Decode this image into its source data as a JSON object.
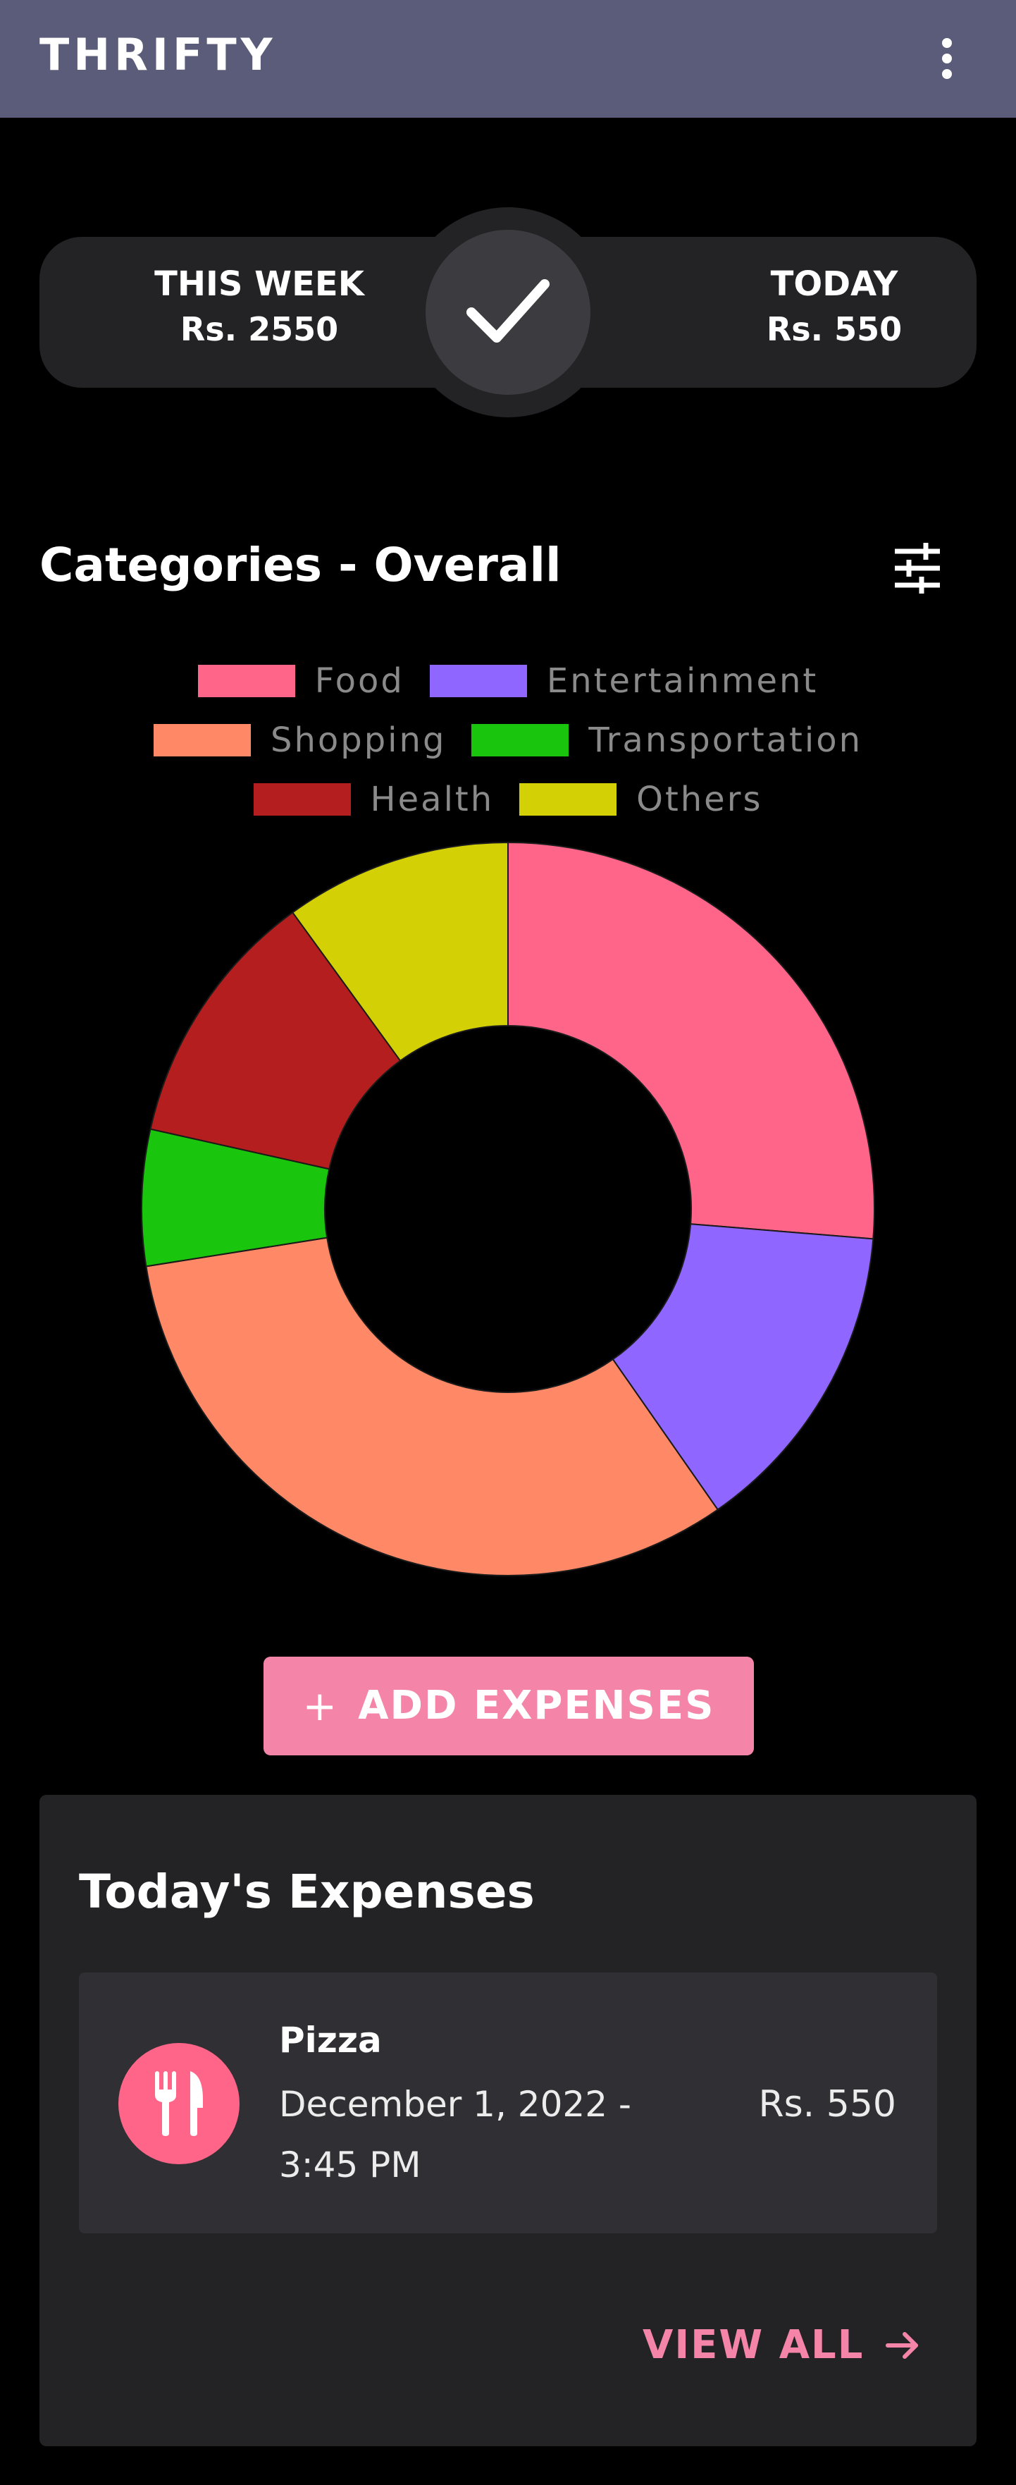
{
  "app": {
    "title": "THRIFTY"
  },
  "summary": {
    "week_label": "THIS WEEK",
    "week_value": "Rs. 2550",
    "today_label": "TODAY",
    "today_value": "Rs. 550"
  },
  "categories_section": {
    "title": "Categories - Overall"
  },
  "legend": [
    {
      "label": "Food",
      "color": "#ff6489"
    },
    {
      "label": "Entertainment",
      "color": "#8f66ff"
    },
    {
      "label": "Shopping",
      "color": "#ff8866"
    },
    {
      "label": "Transportation",
      "color": "#1ac50e"
    },
    {
      "label": "Health",
      "color": "#b41e1e"
    },
    {
      "label": "Others",
      "color": "#d3d106"
    }
  ],
  "chart_data": {
    "type": "pie",
    "donut": true,
    "categories": [
      "Food",
      "Entertainment",
      "Shopping",
      "Transportation",
      "Health",
      "Others"
    ],
    "values": [
      26.3,
      14.0,
      32.2,
      6.0,
      11.5,
      10.0
    ],
    "colors": [
      "#ff6489",
      "#8f66ff",
      "#ff8866",
      "#1ac50e",
      "#b41e1e",
      "#d3d106"
    ],
    "legend_position": "top"
  },
  "add_button": {
    "plus": "+",
    "label": "ADD EXPENSES"
  },
  "todays_expenses": {
    "title": "Today's Expenses",
    "items": [
      {
        "name": "Pizza",
        "date": "December 1, 2022 - 3:45 PM",
        "amount": "Rs. 550",
        "icon": "fork-knife-icon",
        "icon_color": "#ff6489"
      }
    ],
    "view_all_label": "VIEW ALL"
  },
  "colors": {
    "appbar": "#5b5c79",
    "card": "#232326",
    "accent": "#f485a8"
  }
}
